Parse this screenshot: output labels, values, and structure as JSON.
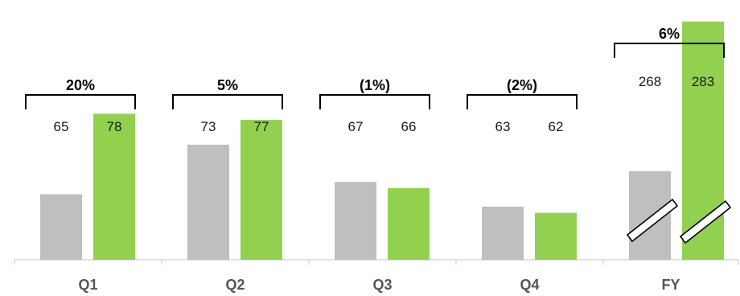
{
  "chart_data": {
    "type": "bar",
    "title": "",
    "xlabel": "",
    "ylabel": "",
    "categories": [
      "Q1",
      "Q2",
      "Q3",
      "Q4",
      "FY"
    ],
    "series": [
      {
        "values": [
          65,
          73,
          67,
          63,
          268
        ],
        "color": "#bfbfbf"
      },
      {
        "values": [
          78,
          77,
          66,
          62,
          283
        ],
        "color": "#92d050"
      }
    ],
    "growth_labels": [
      "20%",
      "5%",
      "(1%)",
      "(2%)",
      "6%"
    ],
    "axis_break_category": "FY",
    "grid": false,
    "legend": "none"
  }
}
